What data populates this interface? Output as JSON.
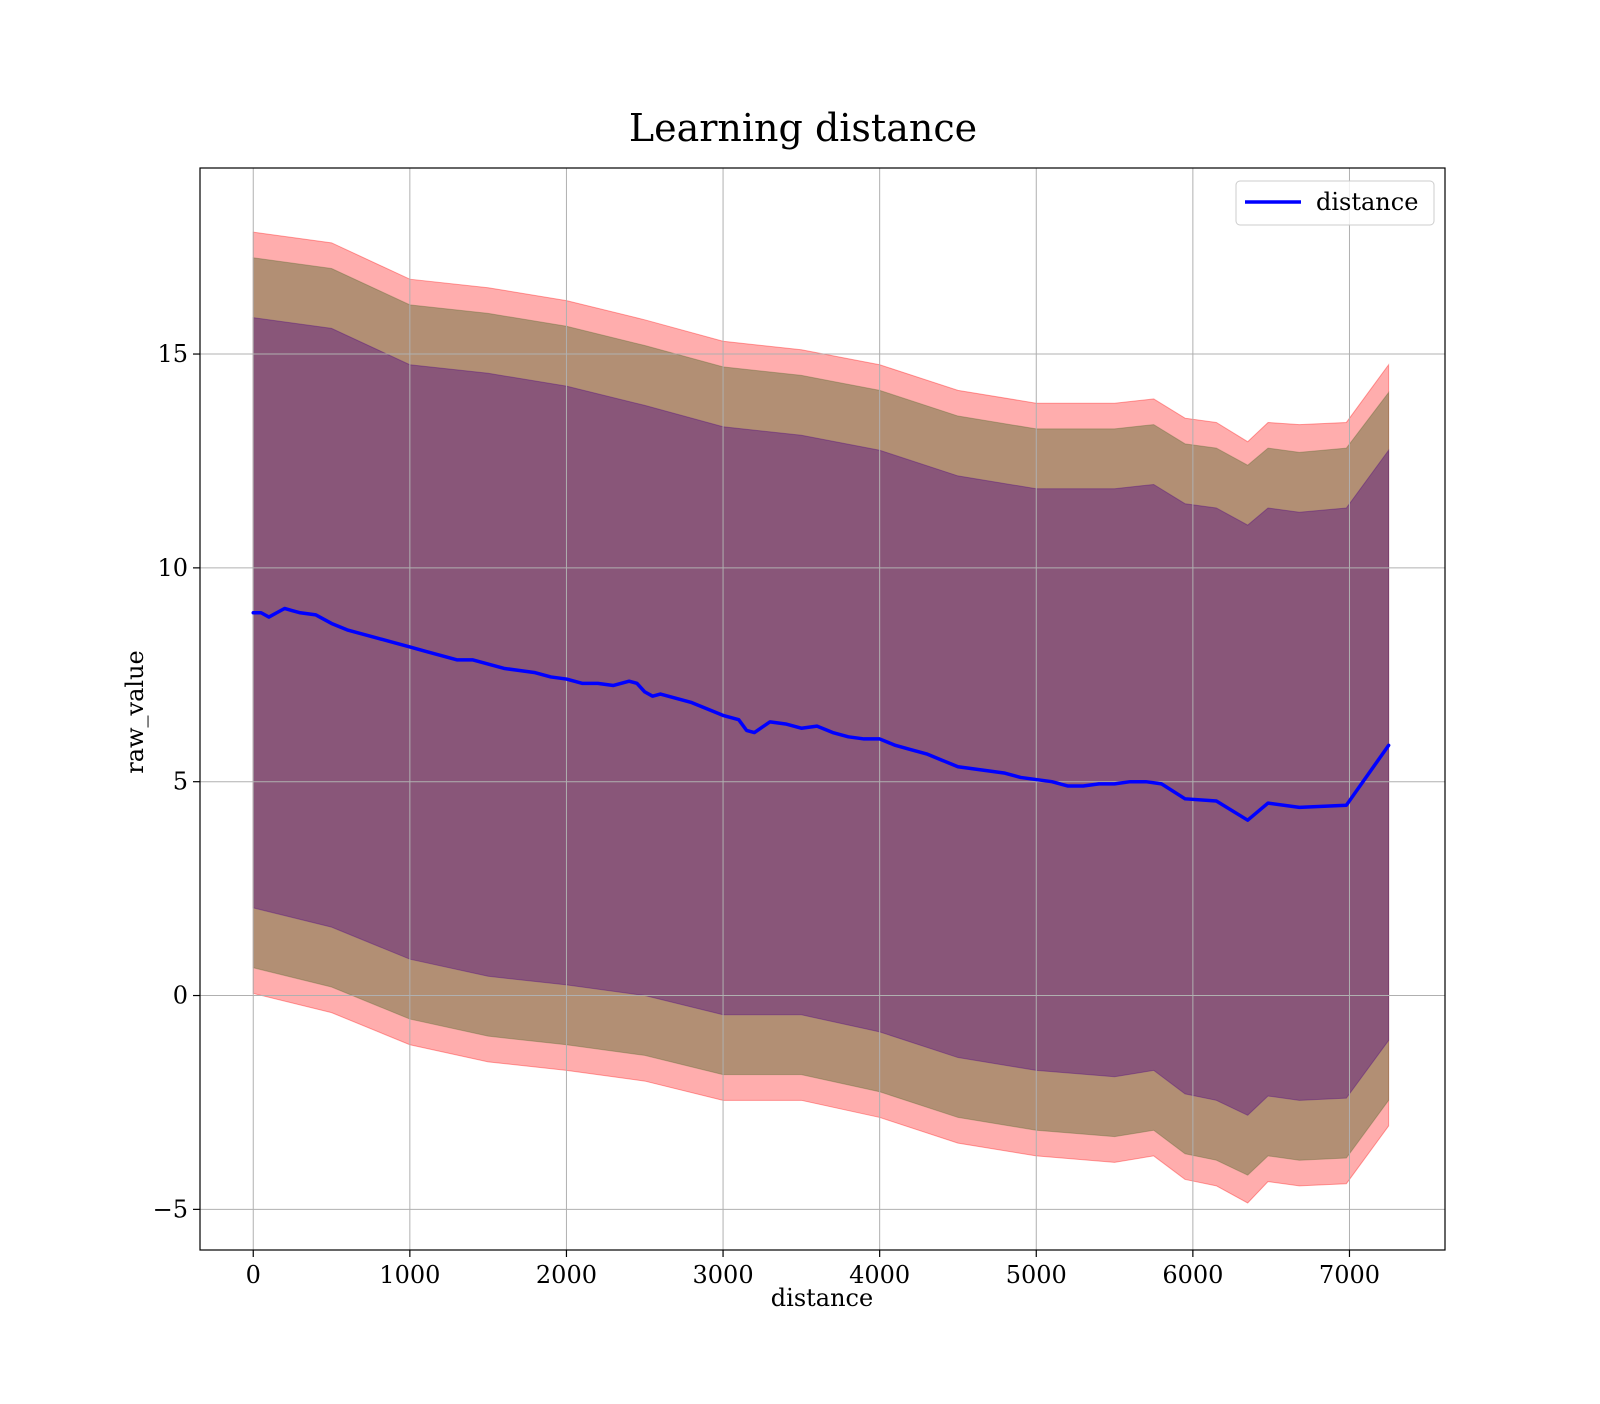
{
  "chart_data": {
    "type": "line",
    "title": "Learning distance",
    "xlabel": "distance",
    "ylabel": "raw_value",
    "xlim": [
      -340,
      7610
    ],
    "ylim": [
      -5.95,
      19.35
    ],
    "xticks": [
      0,
      1000,
      2000,
      3000,
      4000,
      5000,
      6000,
      7000
    ],
    "xtick_labels": [
      "0",
      "1000",
      "2000",
      "3000",
      "4000",
      "5000",
      "6000",
      "7000"
    ],
    "yticks": [
      -5,
      0,
      5,
      10,
      15
    ],
    "ytick_labels": [
      "−5",
      "0",
      "5",
      "10",
      "15"
    ],
    "grid": true,
    "legend": {
      "placement": "top-right",
      "entries": [
        "distance"
      ]
    },
    "colors": {
      "line": "#0000ff",
      "band": "#ff0000",
      "inner_overlay": "#556b2f",
      "outermost_overlay": "#4b0082",
      "grid": "#b0b0b0",
      "axes": "#000000"
    },
    "series": [
      {
        "name": "distance",
        "x": [
          0,
          50,
          100,
          150,
          200,
          250,
          300,
          400,
          500,
          600,
          700,
          800,
          900,
          1000,
          1100,
          1200,
          1300,
          1400,
          1500,
          1600,
          1700,
          1800,
          1900,
          2000,
          2100,
          2200,
          2300,
          2400,
          2450,
          2500,
          2550,
          2600,
          2700,
          2800,
          2900,
          3000,
          3100,
          3150,
          3200,
          3300,
          3400,
          3500,
          3600,
          3700,
          3800,
          3900,
          4000,
          4100,
          4200,
          4300,
          4400,
          4500,
          4600,
          4700,
          4800,
          4900,
          5000,
          5100,
          5200,
          5300,
          5400,
          5500,
          5600,
          5700,
          5800,
          5950,
          6150,
          6350,
          6480,
          6680,
          6980,
          7250
        ],
        "values": [
          8.95,
          8.95,
          8.85,
          8.95,
          9.05,
          9.0,
          8.95,
          8.9,
          8.7,
          8.55,
          8.45,
          8.35,
          8.25,
          8.15,
          8.05,
          7.95,
          7.85,
          7.85,
          7.75,
          7.65,
          7.6,
          7.55,
          7.45,
          7.4,
          7.3,
          7.3,
          7.25,
          7.35,
          7.3,
          7.1,
          7.0,
          7.05,
          6.95,
          6.85,
          6.7,
          6.55,
          6.45,
          6.2,
          6.15,
          6.4,
          6.35,
          6.25,
          6.3,
          6.15,
          6.05,
          6.0,
          6.0,
          5.85,
          5.75,
          5.65,
          5.5,
          5.35,
          5.3,
          5.25,
          5.2,
          5.1,
          5.05,
          5.0,
          4.9,
          4.9,
          4.95,
          4.95,
          5.0,
          5.0,
          4.95,
          4.6,
          4.55,
          4.1,
          4.5,
          4.4,
          4.45,
          5.85
        ]
      }
    ],
    "bands": [
      {
        "name": "",
        "x": [
          0,
          500,
          1000,
          1500,
          2000,
          2500,
          3000,
          3500,
          4000,
          4500,
          5000,
          5500,
          5750,
          5950,
          6150,
          6350,
          6480,
          6680,
          6980,
          7250
        ],
        "lower": [
          0.05,
          -0.4,
          -1.15,
          -1.55,
          -1.75,
          -2.0,
          -2.45,
          -2.45,
          -2.85,
          -3.45,
          -3.75,
          -3.9,
          -3.75,
          -4.3,
          -4.45,
          -4.85,
          -4.35,
          -4.45,
          -4.4,
          -3.05
        ],
        "upper": [
          17.85,
          17.6,
          16.75,
          16.55,
          16.25,
          15.8,
          15.3,
          15.1,
          14.75,
          14.15,
          13.85,
          13.85,
          13.95,
          13.5,
          13.4,
          12.95,
          13.4,
          13.35,
          13.4,
          14.75
        ]
      },
      {
        "name": "",
        "x": [
          0,
          500,
          1000,
          1500,
          2000,
          2500,
          3000,
          3500,
          4000,
          4500,
          5000,
          5500,
          5750,
          5950,
          6150,
          6350,
          6480,
          6680,
          6980,
          7250
        ],
        "lower": [
          0.65,
          0.2,
          -0.55,
          -0.95,
          -1.15,
          -1.4,
          -1.85,
          -1.85,
          -2.25,
          -2.85,
          -3.15,
          -3.3,
          -3.15,
          -3.7,
          -3.85,
          -4.2,
          -3.75,
          -3.85,
          -3.8,
          -2.45
        ],
        "upper": [
          17.25,
          17.0,
          16.15,
          15.95,
          15.65,
          15.2,
          14.7,
          14.5,
          14.15,
          13.55,
          13.25,
          13.25,
          13.35,
          12.9,
          12.8,
          12.4,
          12.8,
          12.7,
          12.8,
          14.1
        ]
      },
      {
        "name": "",
        "x": [
          0,
          500,
          1000,
          1500,
          2000,
          2500,
          3000,
          3500,
          4000,
          4500,
          5000,
          5500,
          5750,
          5950,
          6150,
          6350,
          6480,
          6680,
          6980,
          7250
        ],
        "lower": [
          2.05,
          1.6,
          0.85,
          0.45,
          0.25,
          0.0,
          -0.45,
          -0.45,
          -0.85,
          -1.45,
          -1.75,
          -1.9,
          -1.75,
          -2.3,
          -2.45,
          -2.8,
          -2.35,
          -2.45,
          -2.4,
          -1.05
        ],
        "upper": [
          15.85,
          15.6,
          14.75,
          14.55,
          14.25,
          13.8,
          13.3,
          13.1,
          12.75,
          12.15,
          11.85,
          11.85,
          11.95,
          11.5,
          11.4,
          11.0,
          11.4,
          11.3,
          11.4,
          12.75
        ]
      }
    ]
  }
}
